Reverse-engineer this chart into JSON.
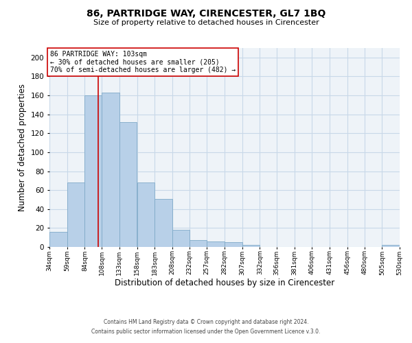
{
  "title": "86, PARTRIDGE WAY, CIRENCESTER, GL7 1BQ",
  "subtitle": "Size of property relative to detached houses in Cirencester",
  "xlabel": "Distribution of detached houses by size in Cirencester",
  "ylabel": "Number of detached properties",
  "footer_line1": "Contains HM Land Registry data © Crown copyright and database right 2024.",
  "footer_line2": "Contains public sector information licensed under the Open Government Licence v.3.0.",
  "bar_color": "#b8d0e8",
  "bar_edge_color": "#7faac8",
  "grid_color": "#c8d8e8",
  "background_color": "#eef3f8",
  "property_line_x": 103,
  "property_line_color": "#cc0000",
  "annotation_box_color": "#cc0000",
  "annotation_text": "86 PARTRIDGE WAY: 103sqm\n← 30% of detached houses are smaller (205)\n70% of semi-detached houses are larger (482) →",
  "bin_edges": [
    34,
    59,
    84,
    108,
    133,
    158,
    183,
    208,
    232,
    257,
    282,
    307,
    332,
    356,
    381,
    406,
    431,
    456,
    480,
    505,
    530
  ],
  "bin_counts": [
    16,
    68,
    160,
    163,
    132,
    68,
    51,
    18,
    7,
    6,
    5,
    2,
    0,
    0,
    0,
    0,
    0,
    0,
    0,
    2
  ],
  "ylim": [
    0,
    210
  ],
  "yticks": [
    0,
    20,
    40,
    60,
    80,
    100,
    120,
    140,
    160,
    180,
    200
  ]
}
